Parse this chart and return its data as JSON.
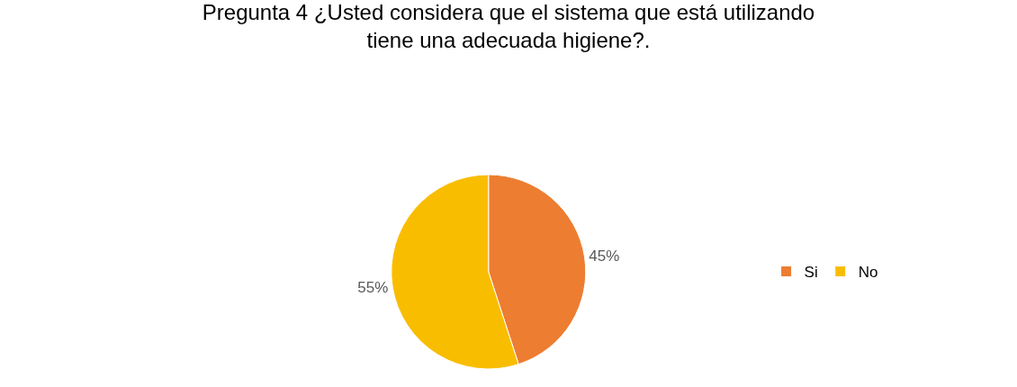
{
  "chart_data": {
    "type": "pie",
    "title": "Pregunta 4 ¿Usted considera que el sistema que está utilizando\ntiene una adecuada higiene?.",
    "categories": [
      "Si",
      "No"
    ],
    "values": [
      45,
      55
    ],
    "colors": [
      "#ed7d31",
      "#f9bd00"
    ],
    "value_labels": [
      "45%",
      "55%"
    ],
    "legend": "right"
  }
}
